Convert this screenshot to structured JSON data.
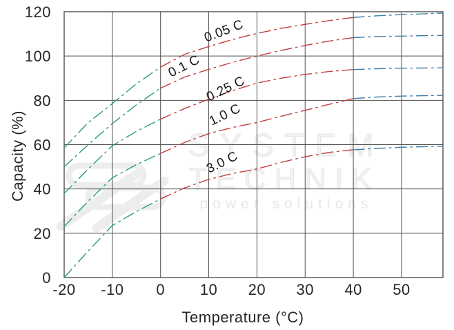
{
  "chart_data": {
    "type": "line",
    "title": "",
    "xlabel": "Temperature (°C)",
    "ylabel": "Capacity (%)",
    "xlim": [
      -20,
      58.6
    ],
    "ylim": [
      0,
      120
    ],
    "x_tick_labels": [
      "-20",
      "-10",
      "0",
      "10",
      "20",
      "30",
      "40",
      "50"
    ],
    "x_tick_values": [
      -20,
      -10,
      0,
      10,
      20,
      30,
      40,
      50
    ],
    "y_tick_labels": [
      "0",
      "20",
      "40",
      "60",
      "80",
      "100",
      "120"
    ],
    "y_tick_values": [
      0,
      20,
      40,
      60,
      80,
      100,
      120
    ],
    "grid": true,
    "legend": "none",
    "line_style": "dash-dot",
    "color_breakpoints_c": [
      0,
      40
    ],
    "colors": {
      "cold_below_0c": "#2a9c7c",
      "mid_0_to_40c": "#c23c3c",
      "hot_above_40c": "#3d7ea6",
      "grid": "#4f4f4f",
      "axis_text": "#262626",
      "curve_label_text": "#1a1a1a",
      "watermark": "#ececec"
    },
    "x": [
      -20,
      -15,
      -10,
      -5,
      0,
      5,
      10,
      15,
      20,
      25,
      30,
      35,
      40,
      45,
      50,
      55,
      58.6
    ],
    "series": [
      {
        "name": "0.05 C",
        "values": [
          58.5,
          70,
          78.5,
          87.5,
          95,
          100.8,
          104.3,
          107.5,
          110.2,
          112.5,
          114.3,
          116,
          117.4,
          118.2,
          118.7,
          119.1,
          119.4
        ],
        "label": {
          "x": 299,
          "y": 61,
          "angle": -21
        }
      },
      {
        "name": "0.1 C",
        "values": [
          50,
          60,
          69.5,
          78,
          85.5,
          90.5,
          94,
          97.2,
          100,
          102.5,
          104.8,
          106.8,
          108.3,
          108.8,
          109,
          109.2,
          109.3
        ],
        "label": {
          "x": 248,
          "y": 112,
          "angle": -27
        }
      },
      {
        "name": "0.25 C",
        "values": [
          38,
          49,
          59.5,
          66,
          71.5,
          76.3,
          80.5,
          84.4,
          87.8,
          90,
          91.7,
          93,
          93.9,
          94.3,
          94.5,
          94.6,
          94.7
        ],
        "label": {
          "x": 303,
          "y": 147,
          "angle": -26
        }
      },
      {
        "name": "1.0 C",
        "values": [
          23,
          34.5,
          45,
          51,
          56,
          61,
          65,
          67.8,
          70,
          72.8,
          75.5,
          78.2,
          80.8,
          81.5,
          81.9,
          82.1,
          82.3
        ],
        "label": {
          "x": 307,
          "y": 182,
          "angle": -26
        }
      },
      {
        "name": "3.0 C",
        "values": [
          0,
          12,
          23.5,
          29.8,
          35.5,
          40.5,
          44.3,
          47,
          49,
          52,
          54.5,
          56.5,
          57.7,
          58.3,
          58.8,
          59.1,
          59.3
        ],
        "label": {
          "x": 303,
          "y": 251,
          "angle": -26
        }
      }
    ]
  },
  "watermark": {
    "line1": "SYSTEM",
    "line2": "TECHNIK",
    "line3": "power solutions"
  }
}
